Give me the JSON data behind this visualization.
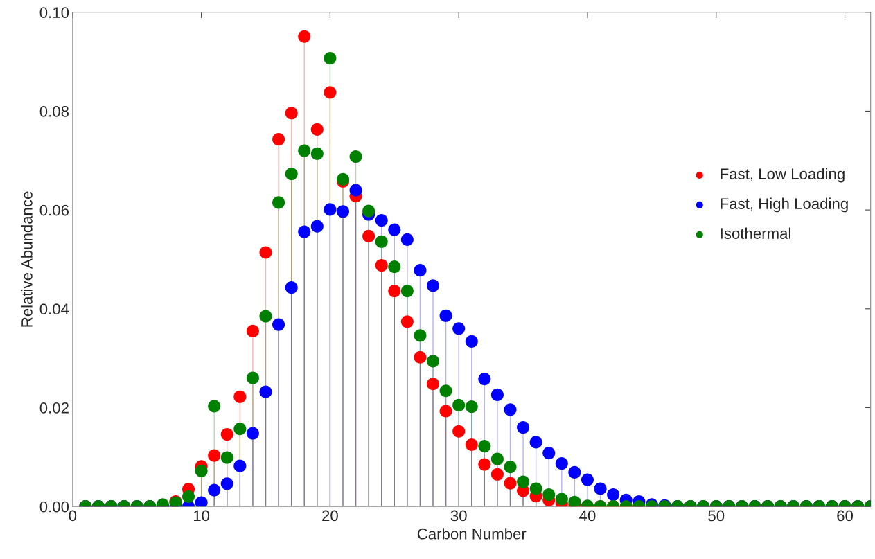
{
  "chart_data": {
    "type": "lollipop",
    "xlabel": "Carbon Number",
    "ylabel": "Relative Abundance",
    "x": [
      1,
      2,
      3,
      4,
      5,
      6,
      7,
      8,
      9,
      10,
      11,
      12,
      13,
      14,
      15,
      16,
      17,
      18,
      19,
      20,
      21,
      22,
      23,
      24,
      25,
      26,
      27,
      28,
      29,
      30,
      31,
      32,
      33,
      34,
      35,
      36,
      37,
      38,
      39,
      40,
      41,
      42,
      43,
      44,
      45,
      46,
      47,
      48,
      49,
      50,
      51,
      52,
      53,
      54,
      55,
      56,
      57,
      58,
      59,
      60,
      61,
      62
    ],
    "series": [
      {
        "name": "Fast, Low Loading",
        "color": "#ff0000",
        "values": [
          0,
          0,
          0,
          0,
          0,
          0,
          0,
          0.001,
          0.0035,
          0.0081,
          0.0103,
          0.0146,
          0.0222,
          0.0355,
          0.0514,
          0.0743,
          0.0796,
          0.0951,
          0.0763,
          0.0838,
          0.0658,
          0.0628,
          0.0547,
          0.0488,
          0.0436,
          0.0374,
          0.0302,
          0.0248,
          0.0193,
          0.0152,
          0.0125,
          0.0085,
          0.0065,
          0.0047,
          0.0032,
          0.0021,
          0.0013,
          0.0006,
          0.0003,
          0,
          0,
          0,
          0,
          0,
          0,
          0,
          0,
          0,
          0,
          0,
          0,
          0,
          0,
          0,
          0,
          0,
          0,
          0,
          0,
          0,
          0,
          0
        ]
      },
      {
        "name": "Fast, High Loading",
        "color": "#0000ff",
        "values": [
          0,
          0,
          0,
          0,
          0,
          0,
          0,
          0,
          0,
          0.0008,
          0.0033,
          0.0046,
          0.0082,
          0.0148,
          0.0232,
          0.0368,
          0.0443,
          0.0556,
          0.0567,
          0.0601,
          0.0597,
          0.064,
          0.0591,
          0.0579,
          0.056,
          0.054,
          0.0478,
          0.0447,
          0.0386,
          0.036,
          0.0334,
          0.0258,
          0.0226,
          0.0196,
          0.016,
          0.013,
          0.0108,
          0.0087,
          0.0069,
          0.0054,
          0.0036,
          0.0024,
          0.0013,
          0.001,
          0.0004,
          0.0002,
          0,
          0,
          0,
          0,
          0,
          0,
          0,
          0,
          0,
          0,
          0,
          0,
          0,
          0,
          0,
          0
        ]
      },
      {
        "name": "Isothermal",
        "color": "#008000",
        "values": [
          0,
          0,
          0,
          0,
          0,
          0,
          0.0004,
          0.0008,
          0.002,
          0.0072,
          0.0203,
          0.0099,
          0.0157,
          0.026,
          0.0385,
          0.0615,
          0.0673,
          0.072,
          0.0714,
          0.0907,
          0.0662,
          0.0708,
          0.0598,
          0.0536,
          0.0485,
          0.0436,
          0.0346,
          0.0294,
          0.0234,
          0.0205,
          0.0202,
          0.0122,
          0.0096,
          0.008,
          0.005,
          0.0036,
          0.0024,
          0.0015,
          0.0009,
          0.0001,
          0,
          0,
          0,
          0,
          0,
          0,
          0,
          0,
          0,
          0,
          0,
          0,
          0,
          0,
          0,
          0,
          0,
          0,
          0,
          0,
          0,
          0
        ]
      }
    ],
    "xlim": [
      0,
      62
    ],
    "xticks": [
      0,
      10,
      20,
      30,
      40,
      50,
      60
    ],
    "ylim": [
      0,
      0.1
    ],
    "yticks": [
      {
        "value": 0,
        "label": "0.00"
      },
      {
        "value": 0.02,
        "label": "0.02"
      },
      {
        "value": 0.04,
        "label": "0.04"
      },
      {
        "value": 0.06,
        "label": "0.06"
      },
      {
        "value": 0.08,
        "label": "0.08"
      },
      {
        "value": 0.1,
        "label": "0.10"
      }
    ],
    "marker": "circle",
    "grid": false,
    "legend": "right"
  }
}
